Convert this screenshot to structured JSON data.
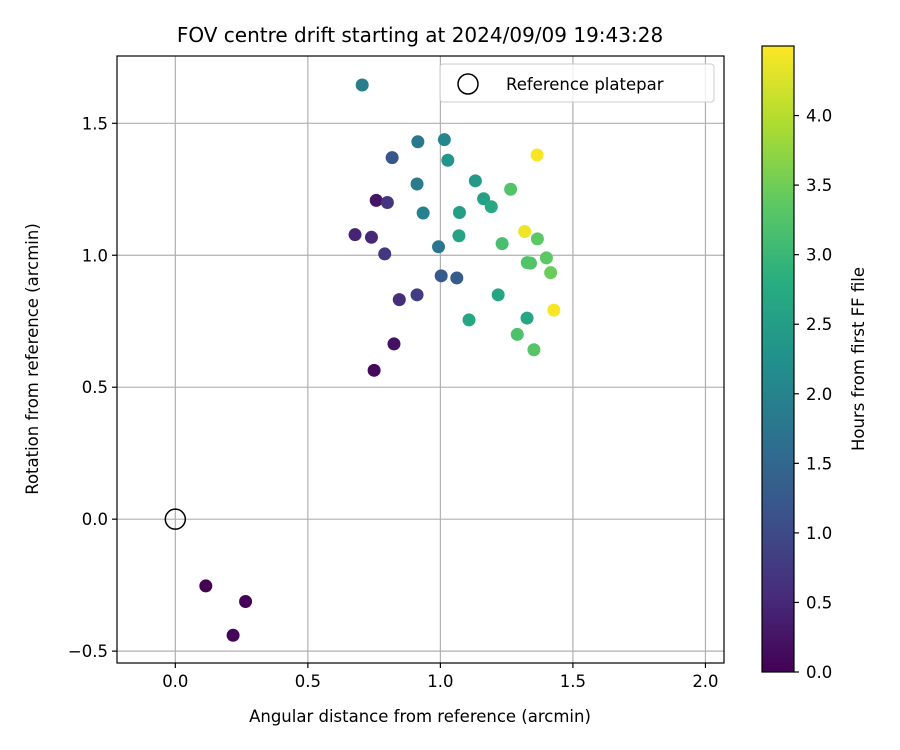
{
  "chart_data": {
    "type": "scatter",
    "title": "FOV centre drift starting at 2024/09/09 19:43:28",
    "xlabel": "Angular distance from reference (arcmin)",
    "ylabel": "Rotation from reference (arcmin)",
    "xlim": [
      -0.22,
      2.07
    ],
    "ylim": [
      -0.545,
      1.755
    ],
    "xticks": [
      0.0,
      0.5,
      1.0,
      1.5,
      2.0
    ],
    "xtick_labels": [
      "0.0",
      "0.5",
      "1.0",
      "1.5",
      "2.0"
    ],
    "yticks": [
      -0.5,
      0.0,
      0.5,
      1.0,
      1.5
    ],
    "ytick_labels": [
      "−0.5",
      "0.0",
      "0.5",
      "1.0",
      "1.5"
    ],
    "grid": true,
    "legend": {
      "position": "top-right",
      "entries": [
        "Reference platepar"
      ]
    },
    "reference_point": {
      "x": 0.0,
      "y": 0.0,
      "label": "Reference platepar"
    },
    "colorbar": {
      "label": "Hours from first FF file",
      "colormap": "viridis",
      "range": [
        0.0,
        4.5
      ],
      "ticks": [
        0.0,
        0.5,
        1.0,
        1.5,
        2.0,
        2.5,
        3.0,
        3.5,
        4.0
      ],
      "tick_labels": [
        "0.0",
        "0.5",
        "1.0",
        "1.5",
        "2.0",
        "2.5",
        "3.0",
        "3.5",
        "4.0"
      ]
    },
    "points": [
      {
        "x": 0.115,
        "y": -0.253,
        "hours": 0.0
      },
      {
        "x": 0.265,
        "y": -0.312,
        "hours": 0.03
      },
      {
        "x": 0.218,
        "y": -0.44,
        "hours": 0.06
      },
      {
        "x": 0.75,
        "y": 0.564,
        "hours": 0.12
      },
      {
        "x": 0.825,
        "y": 0.664,
        "hours": 0.2
      },
      {
        "x": 0.758,
        "y": 1.208,
        "hours": 0.25
      },
      {
        "x": 0.678,
        "y": 1.078,
        "hours": 0.45
      },
      {
        "x": 0.74,
        "y": 1.068,
        "hours": 0.5
      },
      {
        "x": 0.845,
        "y": 0.832,
        "hours": 0.55
      },
      {
        "x": 0.8,
        "y": 1.2,
        "hours": 0.7
      },
      {
        "x": 0.79,
        "y": 1.005,
        "hours": 0.7
      },
      {
        "x": 0.912,
        "y": 0.85,
        "hours": 0.8
      },
      {
        "x": 0.818,
        "y": 1.37,
        "hours": 1.2
      },
      {
        "x": 1.003,
        "y": 0.922,
        "hours": 1.25
      },
      {
        "x": 1.062,
        "y": 0.914,
        "hours": 1.3
      },
      {
        "x": 0.993,
        "y": 1.032,
        "hours": 1.75
      },
      {
        "x": 0.915,
        "y": 1.43,
        "hours": 1.8
      },
      {
        "x": 0.912,
        "y": 1.27,
        "hours": 1.85
      },
      {
        "x": 0.705,
        "y": 1.645,
        "hours": 1.9
      },
      {
        "x": 0.935,
        "y": 1.16,
        "hours": 1.95
      },
      {
        "x": 1.015,
        "y": 1.438,
        "hours": 2.05
      },
      {
        "x": 1.028,
        "y": 1.36,
        "hours": 2.35
      },
      {
        "x": 1.072,
        "y": 1.162,
        "hours": 2.5
      },
      {
        "x": 1.07,
        "y": 1.074,
        "hours": 2.6
      },
      {
        "x": 1.132,
        "y": 1.282,
        "hours": 2.4
      },
      {
        "x": 1.163,
        "y": 1.214,
        "hours": 2.55
      },
      {
        "x": 1.192,
        "y": 1.184,
        "hours": 2.7
      },
      {
        "x": 1.108,
        "y": 0.755,
        "hours": 2.65
      },
      {
        "x": 1.218,
        "y": 0.85,
        "hours": 2.65
      },
      {
        "x": 1.327,
        "y": 0.762,
        "hours": 2.65
      },
      {
        "x": 1.233,
        "y": 1.044,
        "hours": 3.15
      },
      {
        "x": 1.265,
        "y": 1.25,
        "hours": 3.25
      },
      {
        "x": 1.29,
        "y": 0.7,
        "hours": 3.2
      },
      {
        "x": 1.328,
        "y": 0.972,
        "hours": 3.2
      },
      {
        "x": 1.34,
        "y": 0.97,
        "hours": 3.25
      },
      {
        "x": 1.353,
        "y": 0.642,
        "hours": 3.3
      },
      {
        "x": 1.366,
        "y": 1.062,
        "hours": 3.35
      },
      {
        "x": 1.4,
        "y": 0.99,
        "hours": 3.35
      },
      {
        "x": 1.416,
        "y": 0.934,
        "hours": 3.45
      },
      {
        "x": 1.318,
        "y": 1.09,
        "hours": 4.4
      },
      {
        "x": 1.365,
        "y": 1.38,
        "hours": 4.45
      },
      {
        "x": 1.428,
        "y": 0.792,
        "hours": 4.45
      }
    ]
  }
}
